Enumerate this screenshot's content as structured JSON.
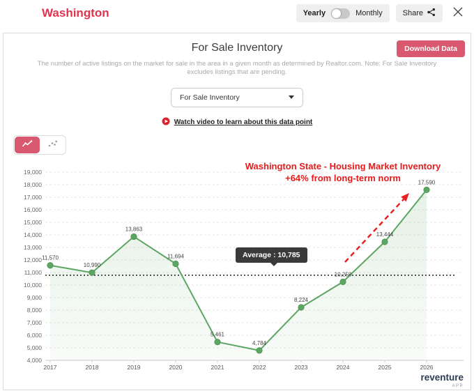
{
  "header": {
    "title": "Washington",
    "toggle": {
      "left": "Yearly",
      "right": "Monthly",
      "selected": "Yearly"
    },
    "share_label": "Share"
  },
  "card": {
    "title": "For Sale Inventory",
    "download_button": "Download Data",
    "description": "The number of active listings on the market for sale in the area in a given month as determined by Realtor.com. Note: For Sale Inventory excludes listings that are pending.",
    "dropdown": {
      "selected": "For Sale Inventory"
    },
    "video_link": "Watch video to learn about this data point"
  },
  "chart_data": {
    "type": "line",
    "title": "",
    "categories": [
      "2017",
      "2018",
      "2019",
      "2020",
      "2021",
      "2022",
      "2023",
      "2024",
      "2025",
      "2026"
    ],
    "series": [
      {
        "name": "For Sale Inventory",
        "values": [
          11570,
          10990,
          13863,
          11694,
          5461,
          4784,
          8224,
          10258,
          13444,
          17590
        ]
      }
    ],
    "ylim": [
      4000,
      19000
    ],
    "ytick_step": 1000,
    "grid": true,
    "legend": "none",
    "average": {
      "value": 10785,
      "label": "Average : 10,785"
    },
    "annotation": {
      "line1": "Washington State - Housing Market Inventory",
      "line2": "+64% from long-term norm"
    },
    "colors": {
      "line": "#5ca563",
      "point": "#5ca563",
      "fill": "#5ca563",
      "annotation": "#e81a1a",
      "arrow": "#e82222",
      "average_line": "#1a1a1a",
      "accent": "#d8596f",
      "title_red": "#e2334f"
    }
  },
  "logo": {
    "name": "reventure",
    "sub": "APP"
  }
}
